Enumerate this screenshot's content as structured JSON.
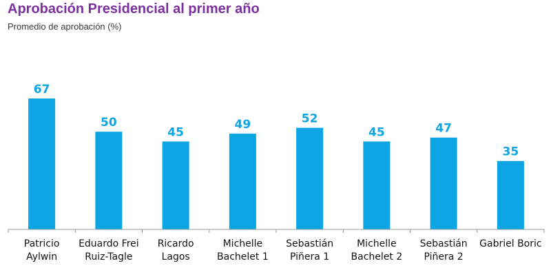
{
  "title": "Aprobación Presidencial al primer año",
  "subtitle": "Promedio de aprobación (%)",
  "colors": {
    "bar": "#0aa5e2",
    "value_label": "#0aa5e2",
    "title": "#7b2fa0",
    "axis": "#999999"
  },
  "chart_data": {
    "type": "bar",
    "title": "Aprobación Presidencial al primer año",
    "ylabel": "Promedio de aprobación (%)",
    "categories": [
      [
        "Patricio",
        "Aylwin"
      ],
      [
        "Eduardo Frei",
        "Ruiz-Tagle"
      ],
      [
        "Ricardo",
        "Lagos"
      ],
      [
        "Michelle",
        "Bachelet 1"
      ],
      [
        "Sebastián",
        "Piñera 1"
      ],
      [
        "Michelle",
        "Bachelet 2"
      ],
      [
        "Sebastián",
        "Piñera 2"
      ],
      [
        "Gabriel Boric"
      ]
    ],
    "values": [
      67,
      50,
      45,
      49,
      52,
      45,
      47,
      35
    ],
    "ylim": [
      0,
      67
    ],
    "grid": false,
    "data_labels": true
  }
}
